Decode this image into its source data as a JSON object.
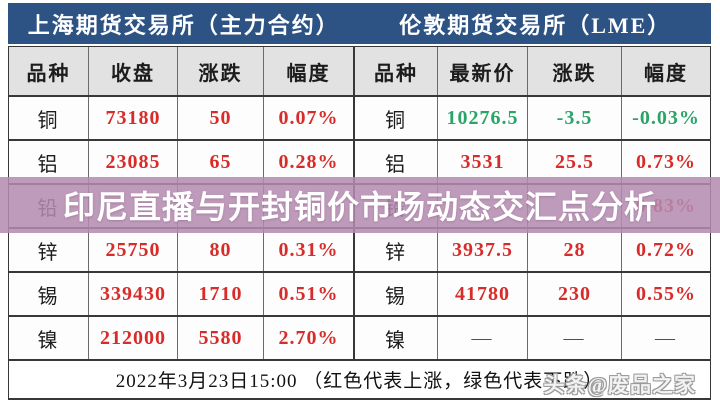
{
  "colors": {
    "header_blue": "#2d5385",
    "rise_red": "#d82c2a",
    "fall_green": "#2aa469",
    "banner_purple": "#b48ab0",
    "column_header_bg": "#e2e2e2"
  },
  "exchange_headers": {
    "shfe": "上海期货交易所（主力合约）",
    "lme": "伦敦期货交易所（LME）"
  },
  "columns": {
    "shfe": [
      "品种",
      "收盘",
      "涨跌",
      "幅度"
    ],
    "lme": [
      "品种",
      "最新价",
      "涨跌",
      "幅度"
    ]
  },
  "rows": [
    [
      "铜",
      "73180",
      "50",
      "0.07%",
      "铜",
      "10276.5",
      "-3.5",
      "-0.03%"
    ],
    [
      "铝",
      "23085",
      "65",
      "0.28%",
      "铝",
      "3531",
      "25.5",
      "0.73%"
    ],
    [
      "铅",
      "",
      "",
      "",
      "铅",
      "",
      "",
      "0.83%"
    ],
    [
      "锌",
      "25750",
      "80",
      "0.31%",
      "锌",
      "3937.5",
      "28",
      "0.72%"
    ],
    [
      "锡",
      "339430",
      "1710",
      "0.51%",
      "锡",
      "41780",
      "230",
      "0.55%"
    ],
    [
      "镍",
      "212000",
      "5580",
      "2.70%",
      "镍",
      "—",
      "—",
      "—"
    ]
  ],
  "banner": {
    "text": "印尼直播与开封铜价市场动态交汇点分析"
  },
  "footer": {
    "timestamp_note": "2022年3月23日15:00 （红色代表上涨，绿色代表下跌）",
    "watermark": "头条@废品之家"
  },
  "chart_data": [
    {
      "type": "table",
      "title": "上海期货交易所（主力合约）",
      "columns": [
        "品种",
        "收盘",
        "涨跌",
        "幅度"
      ],
      "rows": [
        [
          "铜",
          "73180",
          "50",
          "0.07%"
        ],
        [
          "铝",
          "23085",
          "65",
          "0.28%"
        ],
        [
          "铅",
          "",
          "",
          ""
        ],
        [
          "锌",
          "25750",
          "80",
          "0.31%"
        ],
        [
          "锡",
          "339430",
          "1710",
          "0.51%"
        ],
        [
          "镍",
          "212000",
          "5580",
          "2.70%"
        ]
      ]
    },
    {
      "type": "table",
      "title": "伦敦期货交易所（LME）",
      "columns": [
        "品种",
        "最新价",
        "涨跌",
        "幅度"
      ],
      "rows": [
        [
          "铜",
          "10276.5",
          "-3.5",
          "-0.03%"
        ],
        [
          "铝",
          "3531",
          "25.5",
          "0.73%"
        ],
        [
          "铅",
          "",
          "",
          "0.83%"
        ],
        [
          "锌",
          "3937.5",
          "28",
          "0.72%"
        ],
        [
          "锡",
          "41780",
          "230",
          "0.55%"
        ],
        [
          "镍",
          "—",
          "—",
          "—"
        ]
      ]
    }
  ]
}
